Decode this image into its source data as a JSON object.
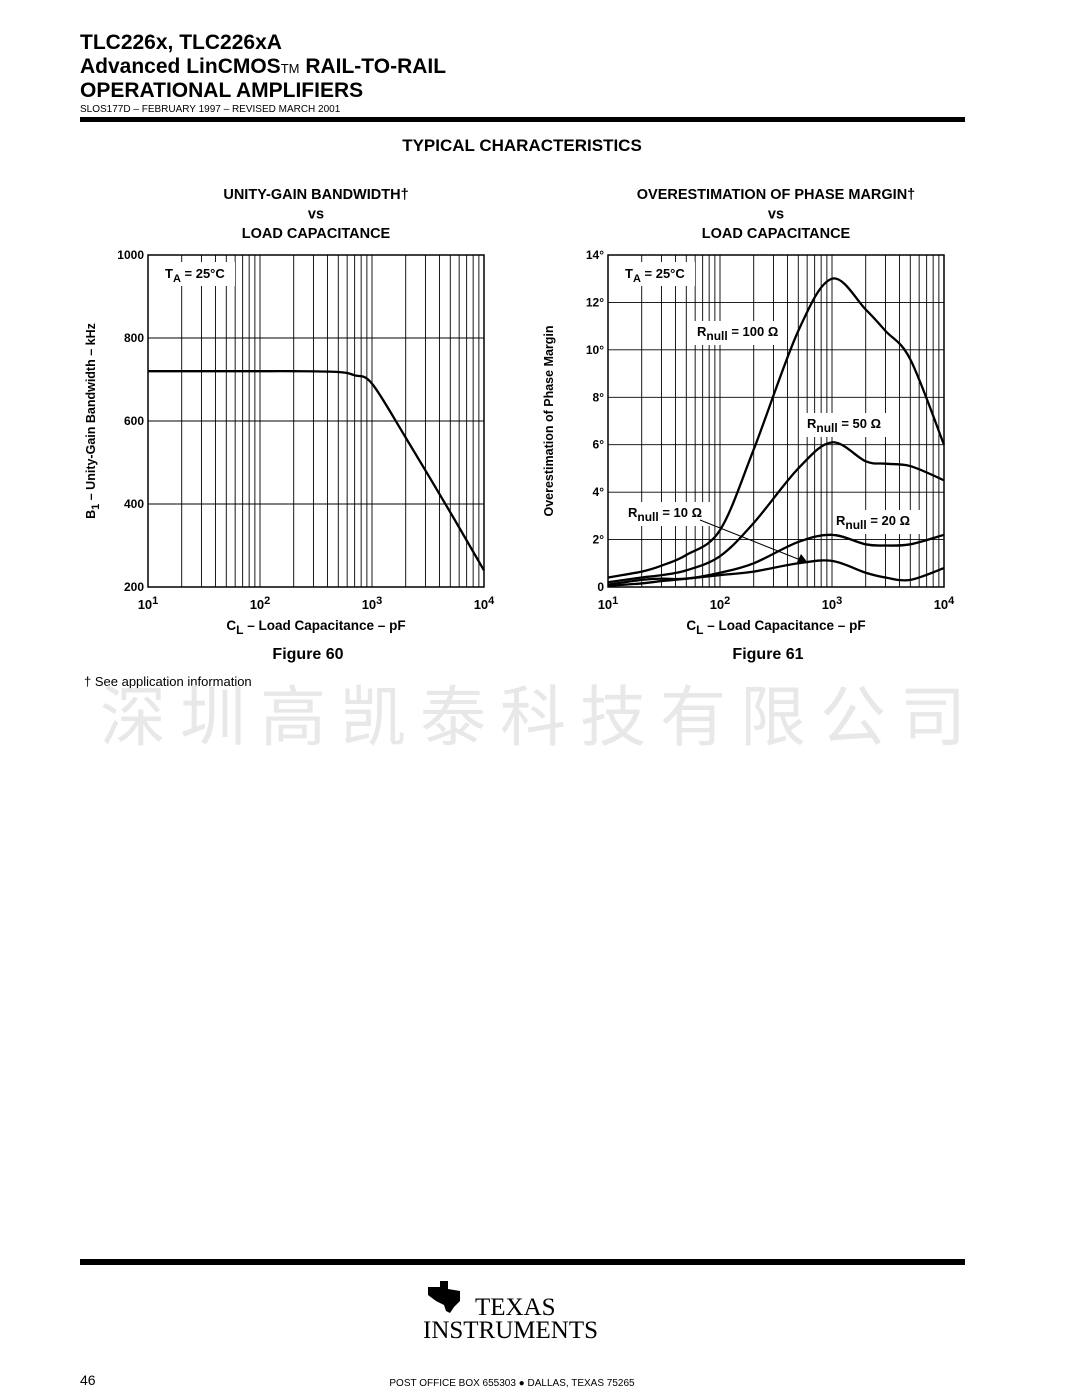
{
  "header": {
    "part": "TLC226x, TLC226xA",
    "line2": "Advanced LinCMOS",
    "tm": "TM",
    "line2_end": " RAIL-TO-RAIL",
    "line3": "OPERATIONAL AMPLIFIERS",
    "doc": "SLOS177D – FEBRUARY 1997 – REVISED  MARCH 2001"
  },
  "section_title": "TYPICAL CHARACTERISTICS",
  "chart_data": [
    {
      "type": "line",
      "title": [
        "UNITY-GAIN BANDWIDTH†",
        "vs",
        "LOAD CAPACITANCE"
      ],
      "y_label": [
        "B",
        "1",
        " – Unity-Gain Bandwidth – kHz"
      ],
      "x_label": [
        "C",
        "L",
        " – Load Capacitance – pF"
      ],
      "annotation": [
        "T",
        "A",
        " = 25°C"
      ],
      "figure": "Figure 60",
      "x_log": true,
      "xlim": [
        10,
        10000
      ],
      "xticks": [
        {
          "value": 10,
          "label": "10",
          "exp": "1"
        },
        {
          "value": 100,
          "label": "10",
          "exp": "2"
        },
        {
          "value": 1000,
          "label": "10",
          "exp": "3"
        },
        {
          "value": 10000,
          "label": "10",
          "exp": "4"
        }
      ],
      "x_minor": [
        20,
        30,
        40,
        50,
        60,
        70,
        80,
        90,
        200,
        300,
        400,
        500,
        600,
        700,
        800,
        900,
        2000,
        3000,
        4000,
        5000,
        6000,
        7000,
        8000,
        9000
      ],
      "ylim": [
        200,
        1000
      ],
      "yticks": [
        200,
        400,
        600,
        800,
        1000
      ],
      "grid": true,
      "x": [
        10,
        20,
        50,
        100,
        200,
        500,
        700,
        1000,
        2000,
        5000,
        10000
      ],
      "series": [
        {
          "color": "#000000",
          "values": [
            720,
            720,
            720,
            720,
            720,
            718,
            710,
            690,
            560,
            380,
            240
          ]
        }
      ]
    },
    {
      "type": "line",
      "title": [
        "OVERESTIMATION OF PHASE MARGIN†",
        "vs",
        "LOAD CAPACITANCE"
      ],
      "y_label": [
        "Overestimation of Phase Margin"
      ],
      "x_label": [
        "C",
        "L",
        " – Load Capacitance – pF"
      ],
      "annotation": [
        "T",
        "A",
        " = 25°C"
      ],
      "figure": "Figure 61",
      "x_log": true,
      "xlim": [
        10,
        10000
      ],
      "xticks": [
        {
          "value": 10,
          "label": "10",
          "exp": "1"
        },
        {
          "value": 100,
          "label": "10",
          "exp": "2"
        },
        {
          "value": 1000,
          "label": "10",
          "exp": "3"
        },
        {
          "value": 10000,
          "label": "10",
          "exp": "4"
        }
      ],
      "x_minor": [
        20,
        30,
        40,
        50,
        60,
        70,
        80,
        90,
        200,
        300,
        400,
        500,
        600,
        700,
        800,
        900,
        2000,
        3000,
        4000,
        5000,
        6000,
        7000,
        8000,
        9000
      ],
      "ylim": [
        0,
        14
      ],
      "yticks": [
        0,
        {
          "value": 2,
          "label": "2°"
        },
        {
          "value": 4,
          "label": "4°"
        },
        {
          "value": 6,
          "label": "6°"
        },
        {
          "value": 8,
          "label": "8°"
        },
        {
          "value": 10,
          "label": "10°"
        },
        {
          "value": 12,
          "label": "12°"
        },
        {
          "value": 14,
          "label": "14°"
        }
      ],
      "grid": true,
      "x": [
        10,
        20,
        30,
        50,
        100,
        200,
        500,
        1000,
        2000,
        3000,
        5000,
        10000
      ],
      "series": [
        {
          "label": [
            "R",
            "null",
            " = 100 Ω"
          ],
          "color": "#000000",
          "values": [
            0.4,
            0.65,
            0.9,
            1.35,
            2.4,
            5.8,
            10.8,
            13,
            11.7,
            10.8,
            9.6,
            6.0
          ]
        },
        {
          "label": [
            "R",
            "null",
            " = 50 Ω"
          ],
          "color": "#000000",
          "values": [
            0.2,
            0.4,
            0.5,
            0.7,
            1.3,
            2.7,
            5.0,
            6.1,
            5.3,
            5.2,
            5.1,
            4.5
          ]
        },
        {
          "label": [
            "R",
            "null",
            " = 20 Ω"
          ],
          "color": "#000000",
          "values": [
            0.1,
            0.3,
            0.35,
            0.35,
            0.6,
            1.0,
            1.9,
            2.2,
            1.8,
            1.75,
            1.8,
            2.2
          ]
        },
        {
          "label": [
            "R",
            "null",
            " = 10 Ω"
          ],
          "color": "#000000",
          "values": [
            0.05,
            0.15,
            0.25,
            0.35,
            0.5,
            0.65,
            1.0,
            1.1,
            0.6,
            0.4,
            0.3,
            0.8
          ]
        }
      ]
    }
  ],
  "footnote": "† See application information",
  "watermark": "深圳高凯泰科技有限公司",
  "footer": {
    "logo_line1": "TEXAS",
    "logo_line2": "INSTRUMENTS",
    "address": "POST OFFICE BOX 655303 ● DALLAS, TEXAS 75265",
    "page": "46"
  }
}
